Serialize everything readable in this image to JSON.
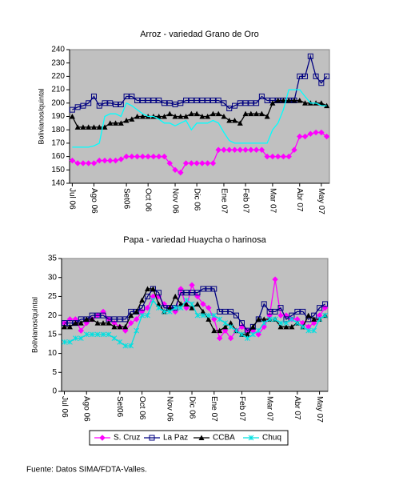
{
  "chart_data": [
    {
      "type": "line",
      "title": "Arroz - variedad Grano de Oro",
      "y_label": "Bolivianos/quintal",
      "categories": [
        "Jul 06",
        null,
        null,
        null,
        "Ago 06",
        null,
        null,
        null,
        null,
        null,
        "Set06",
        null,
        null,
        null,
        "Oct 06",
        null,
        null,
        null,
        null,
        "Nov 06",
        null,
        null,
        null,
        "Dic 06",
        null,
        null,
        null,
        null,
        "Ene 07",
        null,
        null,
        null,
        "Feb 07",
        null,
        null,
        null,
        null,
        "Mar 07",
        null,
        null,
        null,
        null,
        "Abr 07",
        null,
        null,
        null,
        "May 07",
        null
      ],
      "ylim": [
        140,
        240
      ],
      "yticks": [
        140,
        150,
        160,
        170,
        180,
        190,
        200,
        210,
        220,
        230,
        240
      ],
      "grid": false,
      "series": [
        {
          "color": "#ff00ff",
          "marker": "diamond",
          "values": [
            157,
            155,
            155,
            155,
            155,
            157,
            157,
            157,
            157,
            158,
            160,
            160,
            160,
            160,
            160,
            160,
            160,
            160,
            155,
            150,
            148,
            155,
            155,
            155,
            155,
            155,
            155,
            165,
            165,
            165,
            165,
            165,
            165,
            165,
            165,
            165,
            160,
            160,
            160,
            160,
            160,
            165,
            175,
            175,
            177,
            178,
            178,
            175
          ]
        },
        {
          "color": "#000080",
          "marker": "square",
          "values": [
            195,
            197,
            198,
            200,
            205,
            198,
            200,
            200,
            199,
            199,
            205,
            205,
            202,
            202,
            202,
            202,
            202,
            200,
            200,
            199,
            200,
            202,
            202,
            202,
            202,
            202,
            202,
            202,
            200,
            196,
            198,
            200,
            200,
            200,
            200,
            205,
            202,
            202,
            202,
            202,
            202,
            202,
            220,
            220,
            235,
            220,
            215,
            220
          ]
        },
        {
          "color": "#000000",
          "marker": "triangle",
          "values": [
            190,
            182,
            182,
            182,
            182,
            182,
            182,
            185,
            185,
            185,
            187,
            188,
            190,
            190,
            190,
            190,
            190,
            190,
            192,
            190,
            190,
            190,
            192,
            192,
            190,
            190,
            192,
            192,
            190,
            187,
            187,
            185,
            192,
            192,
            192,
            192,
            190,
            200,
            202,
            202,
            202,
            202,
            202,
            200,
            200,
            200,
            200,
            198
          ]
        },
        {
          "color": "#00ffff",
          "marker": "none",
          "values": [
            167,
            167,
            167,
            167,
            168,
            170,
            190,
            192,
            192,
            190,
            200,
            198,
            195,
            192,
            190,
            190,
            188,
            185,
            185,
            183,
            185,
            187,
            180,
            185,
            185,
            185,
            187,
            185,
            178,
            172,
            170,
            170,
            170,
            170,
            170,
            170,
            170,
            180,
            185,
            195,
            210,
            210,
            210,
            205,
            200,
            200,
            198,
            198
          ]
        }
      ]
    },
    {
      "type": "line",
      "title": "Papa - variedad Huaycha o harinosa",
      "y_label": "Bolivianos/quintal",
      "categories": [
        "Jul 06",
        null,
        null,
        null,
        "Ago 06",
        null,
        null,
        null,
        null,
        null,
        "Set06",
        null,
        null,
        null,
        "Oct 06",
        null,
        null,
        null,
        null,
        "Nov 06",
        null,
        null,
        null,
        "Dic 06",
        null,
        null,
        null,
        "Ene 07",
        null,
        null,
        null,
        null,
        "Feb 07",
        null,
        null,
        null,
        null,
        "Mar 07",
        null,
        null,
        null,
        null,
        "Abr 07",
        null,
        null,
        null,
        "May 07",
        null
      ],
      "ylim": [
        0,
        35
      ],
      "yticks": [
        0,
        5,
        10,
        15,
        20,
        25,
        30,
        35
      ],
      "grid": false,
      "legend": "bottom",
      "series": [
        {
          "name": "S. Cruz",
          "color": "#ff00ff",
          "marker": "diamond",
          "values": [
            18,
            19,
            19,
            16,
            18,
            19,
            20,
            21,
            19,
            18,
            17,
            16,
            18,
            19,
            21,
            22,
            25,
            25,
            23,
            22,
            21,
            27,
            22,
            28,
            25,
            23,
            22,
            19,
            14,
            16,
            14,
            16,
            17,
            16,
            16,
            15,
            17,
            20,
            29.5,
            20,
            20,
            19,
            19,
            18,
            17,
            18,
            20,
            22
          ]
        },
        {
          "name": "La Paz",
          "color": "#000080",
          "marker": "square",
          "values": [
            18,
            18,
            18,
            19,
            19,
            20,
            20,
            20,
            19,
            19,
            19,
            19,
            21,
            21,
            22,
            25,
            27,
            26,
            22,
            22,
            22,
            26,
            26,
            26,
            26,
            27,
            27,
            27,
            21,
            21,
            21,
            20,
            18,
            16,
            17,
            19,
            23,
            21,
            21,
            22,
            19,
            20,
            21,
            21,
            19,
            20,
            22,
            23
          ]
        },
        {
          "name": "CCBA",
          "color": "#000000",
          "marker": "triangle",
          "values": [
            17,
            17,
            18,
            18,
            19,
            19,
            18,
            18,
            18,
            17,
            17,
            17,
            20,
            21,
            24,
            27,
            27,
            23,
            21,
            22,
            25,
            23,
            23,
            22,
            23,
            21,
            19,
            16,
            16,
            17,
            18,
            16,
            15,
            15,
            17,
            19,
            19,
            19,
            19,
            17,
            17,
            17,
            18,
            17,
            20,
            19,
            19,
            20
          ]
        },
        {
          "name": "Chuq",
          "color": "#00e0e0",
          "marker": "cross",
          "values": [
            13,
            13,
            14,
            14,
            15,
            15,
            15,
            15,
            15,
            14,
            13,
            12,
            12,
            16,
            20,
            20,
            24,
            22,
            21,
            21,
            22,
            22,
            24,
            23,
            20,
            20,
            20,
            20,
            19,
            18,
            17,
            16,
            15,
            14,
            15,
            16,
            18,
            19,
            19,
            18,
            18,
            19,
            18,
            17,
            16,
            16,
            19,
            20
          ]
        }
      ]
    }
  ],
  "source": "Fuente: Datos SIMA/FDTA-Valles."
}
